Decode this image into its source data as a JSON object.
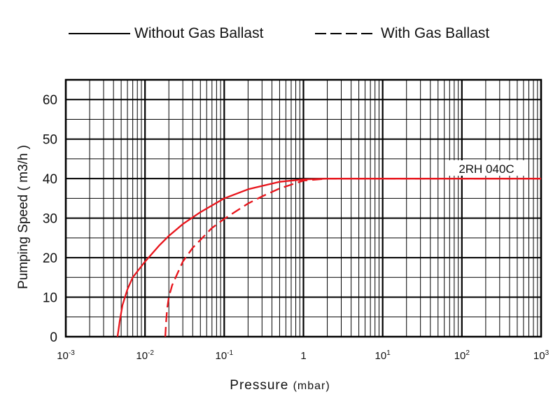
{
  "chart_data": {
    "type": "line",
    "xlabel": "Pressure",
    "xlabel_unit": "(mbar)",
    "ylabel": "Pumping Speed ( m3/h )",
    "xscale": "log",
    "xlim": [
      0.001,
      1000
    ],
    "ylim": [
      0,
      65
    ],
    "x_tick_values": [
      0.001,
      0.01,
      0.1,
      1,
      10,
      100,
      1000
    ],
    "x_tick_labels": [
      {
        "base": "10",
        "exp": "-3"
      },
      {
        "base": "10",
        "exp": "-2"
      },
      {
        "base": "10",
        "exp": "-1"
      },
      {
        "base": "1",
        "exp": ""
      },
      {
        "base": "10",
        "exp": "1"
      },
      {
        "base": "10",
        "exp": "2"
      },
      {
        "base": "10",
        "exp": "3"
      }
    ],
    "y_ticks": [
      0,
      10,
      20,
      30,
      40,
      50,
      60
    ],
    "grid": true,
    "legend_position": "top",
    "annotation": "2RH 040C",
    "series_color": "#e8141b",
    "series": [
      {
        "name": "Without Gas Ballast",
        "style": "solid",
        "x": [
          0.0045,
          0.0048,
          0.0052,
          0.006,
          0.007,
          0.008,
          0.01,
          0.015,
          0.02,
          0.03,
          0.05,
          0.1,
          0.2,
          0.5,
          1,
          2,
          5,
          10,
          100,
          1000
        ],
        "y": [
          0,
          4,
          8,
          12,
          15,
          16.5,
          19,
          23,
          25.5,
          28.5,
          31.5,
          35,
          37.3,
          39.2,
          39.8,
          40,
          40,
          40,
          40,
          40
        ]
      },
      {
        "name": "With Gas Ballast",
        "style": "dashed",
        "x": [
          0.018,
          0.0185,
          0.019,
          0.02,
          0.022,
          0.025,
          0.03,
          0.04,
          0.05,
          0.07,
          0.1,
          0.2,
          0.3,
          0.5,
          1,
          2,
          5,
          10,
          100,
          1000
        ],
        "y": [
          0,
          4,
          7,
          10,
          13,
          15.5,
          19,
          22.5,
          24.5,
          27.5,
          29.8,
          33.7,
          35.5,
          37.5,
          39.5,
          40,
          40,
          40,
          40,
          40
        ]
      }
    ]
  }
}
